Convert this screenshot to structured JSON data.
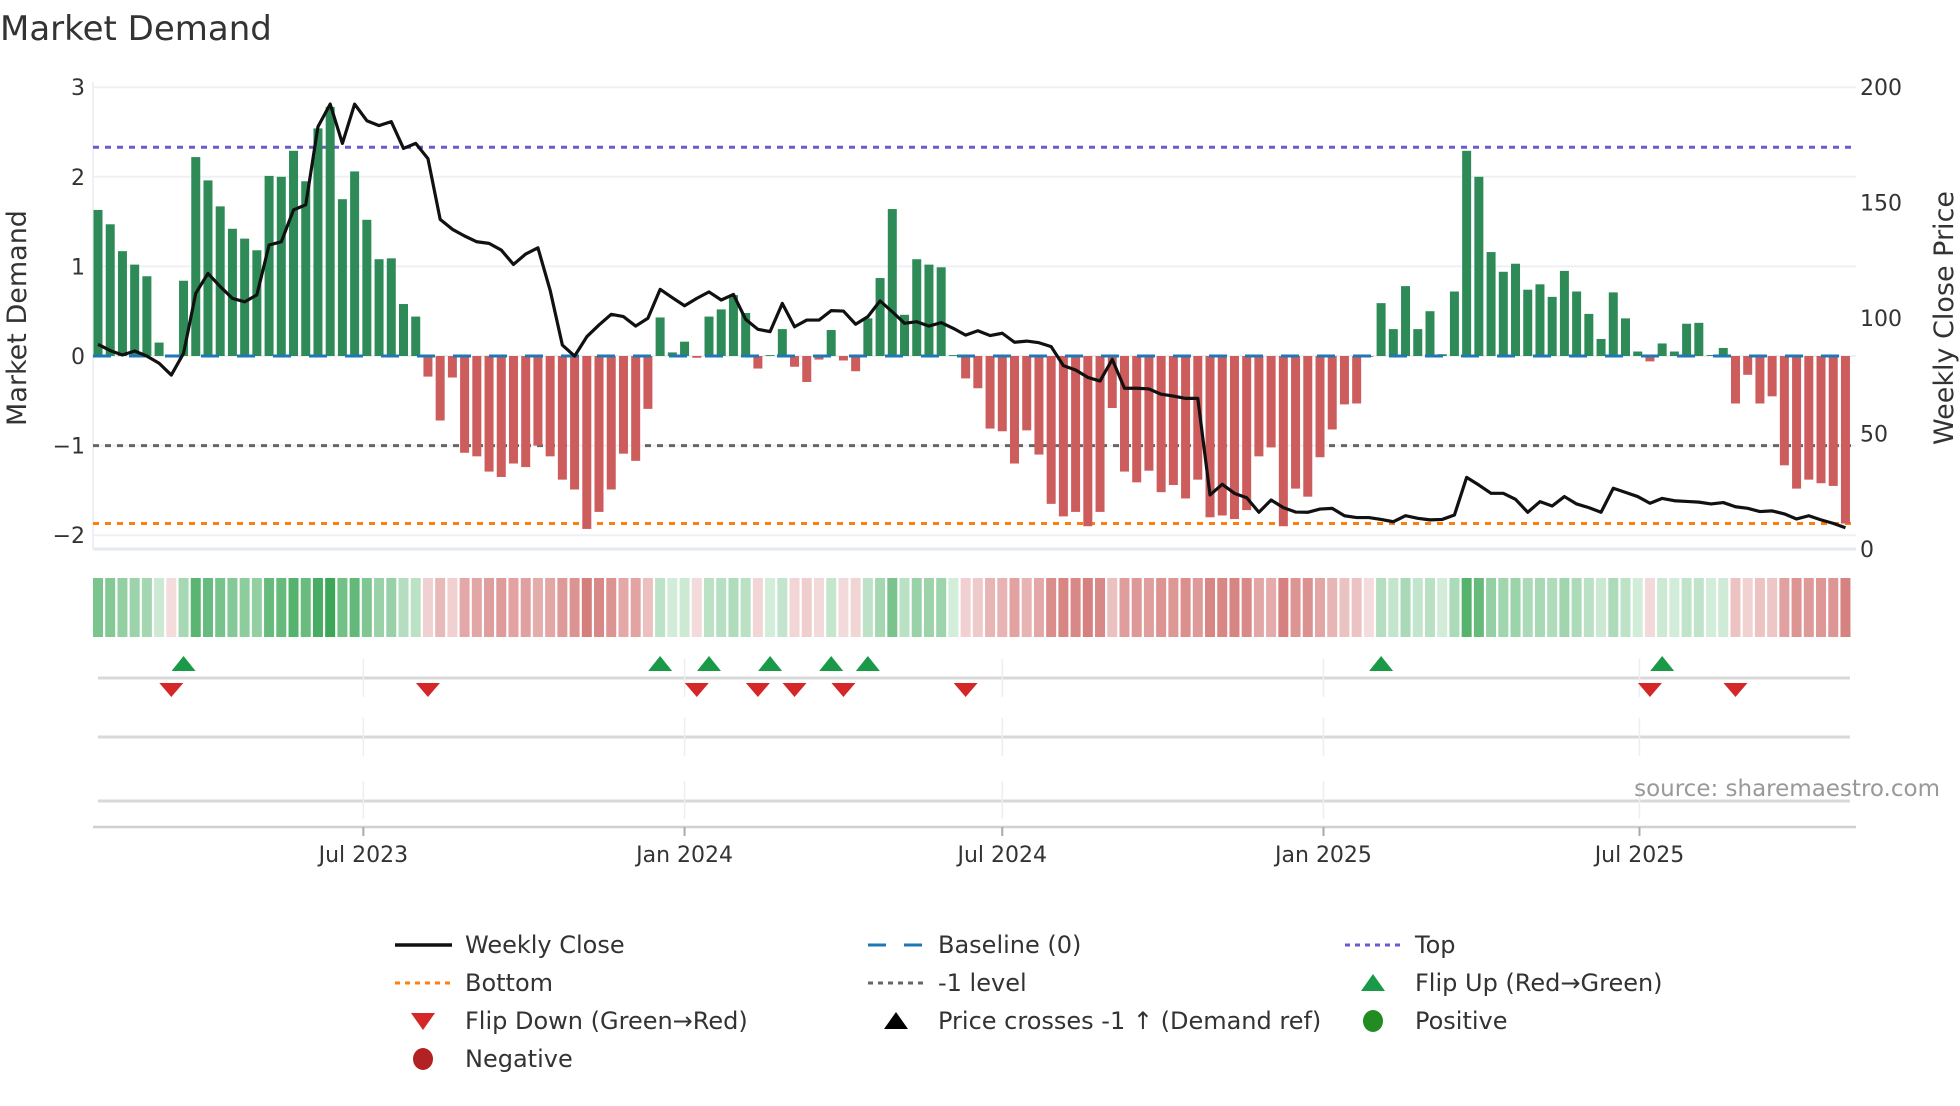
{
  "chart_data": {
    "type": "bar",
    "title": "Market Demand",
    "ylabel": "Market Demand",
    "y2label": "Weekly Close Price",
    "ylim": [
      -2.15,
      3
    ],
    "y2lim": [
      0,
      200
    ],
    "yticks": [
      3,
      2,
      1,
      0,
      -1,
      -2
    ],
    "ytick_labels": [
      "3",
      "2",
      "1",
      "0",
      "−1",
      "−2"
    ],
    "y2ticks": [
      200,
      150,
      100,
      50,
      0
    ],
    "y2tick_labels": [
      "200",
      "150",
      "100",
      "50",
      "0"
    ],
    "x_start": "2023-01-30",
    "x_frequency": "weekly",
    "xticks": [
      {
        "date": "2023-07-01",
        "label": "Jul 2023"
      },
      {
        "date": "2024-01-01",
        "label": "Jan 2024"
      },
      {
        "date": "2024-07-01",
        "label": "Jul 2024"
      },
      {
        "date": "2025-01-01",
        "label": "Jan 2025"
      },
      {
        "date": "2025-07-01",
        "label": "Jul 2025"
      }
    ],
    "reference_lines": {
      "top": 2.33,
      "bottom": -1.87,
      "minus_one": -1,
      "baseline": 0
    },
    "series": [
      {
        "name": "Market Demand",
        "axis": "left",
        "type": "bar",
        "values": [
          1.63,
          1.47,
          1.17,
          1.02,
          0.89,
          0.15,
          0,
          0.84,
          2.22,
          1.96,
          1.67,
          1.42,
          1.31,
          1.18,
          2.01,
          2.0,
          2.29,
          1.95,
          2.54,
          2.78,
          1.75,
          2.06,
          1.52,
          1.08,
          1.09,
          0.58,
          0.44,
          -0.23,
          -0.72,
          -0.24,
          -1.08,
          -1.12,
          -1.29,
          -1.35,
          -1.2,
          -1.24,
          -1.0,
          -1.12,
          -1.38,
          -1.49,
          -1.93,
          -1.74,
          -1.49,
          -1.09,
          -1.17,
          -0.59,
          0.43,
          0.04,
          0.16,
          -0.02,
          0.44,
          0.52,
          0.68,
          0.48,
          -0.14,
          0.01,
          0.3,
          -0.12,
          -0.29,
          -0.04,
          0.29,
          -0.05,
          -0.17,
          0.42,
          0.87,
          1.64,
          0.46,
          1.08,
          1.02,
          0.99,
          0.01,
          -0.25,
          -0.36,
          -0.81,
          -0.84,
          -1.2,
          -0.83,
          -1.1,
          -1.65,
          -1.79,
          -1.74,
          -1.9,
          -1.74,
          -0.58,
          -1.29,
          -1.41,
          -1.28,
          -1.52,
          -1.44,
          -1.59,
          -1.38,
          -1.8,
          -1.78,
          -1.82,
          -1.72,
          -1.12,
          -1.02,
          -1.9,
          -1.48,
          -1.57,
          -1.13,
          -0.82,
          -0.54,
          -0.53,
          -0.01,
          0.59,
          0.3,
          0.78,
          0.3,
          0.5,
          0.02,
          0.72,
          2.29,
          2.0,
          1.16,
          0.94,
          1.03,
          0.74,
          0.8,
          0.66,
          0.95,
          0.72,
          0.47,
          0.19,
          0.71,
          0.42,
          0.05,
          -0.06,
          0.14,
          0.05,
          0.36,
          0.37,
          0.01,
          0.09,
          -0.53,
          -0.21,
          -0.53,
          -0.45,
          -1.22,
          -1.48,
          -1.38,
          -1.42,
          -1.45,
          -1.87
        ]
      },
      {
        "name": "Weekly Close",
        "axis": "right",
        "type": "line",
        "values": [
          88.6,
          85.9,
          84,
          85.7,
          83.5,
          80.4,
          75.3,
          84.7,
          110.7,
          119.3,
          113.6,
          108.5,
          107,
          110,
          131.6,
          133,
          146.8,
          149,
          182.8,
          192.6,
          175.6,
          192.6,
          185.4,
          183.3,
          185,
          173.4,
          175.6,
          169,
          142.7,
          138.4,
          135.5,
          133,
          132.3,
          129.4,
          123.2,
          127.7,
          130.4,
          112,
          88.3,
          83.5,
          91.9,
          97,
          101.6,
          100.6,
          96.5,
          99.9,
          112.4,
          108.8,
          105.3,
          108.5,
          111.3,
          107.8,
          110.2,
          99.4,
          95.1,
          94.1,
          106.3,
          96.2,
          99.1,
          99.1,
          103.2,
          103,
          97.3,
          100.6,
          107.4,
          102.7,
          97.7,
          98.4,
          96.5,
          98,
          95.5,
          92.6,
          94.5,
          92.4,
          93.4,
          89.5,
          90,
          89.3,
          87.6,
          79.4,
          77.5,
          74.3,
          72.7,
          82.1,
          69.6,
          69.6,
          69.3,
          67,
          66.2,
          65.2,
          65.2,
          23.4,
          28,
          24.1,
          22.2,
          15.9,
          21.2,
          17.9,
          16,
          15.9,
          17.3,
          17.6,
          14.4,
          13.6,
          13.6,
          12.8,
          11.8,
          14.4,
          13.3,
          12.6,
          12.8,
          14.7,
          31,
          27.7,
          24.1,
          24.1,
          21.5,
          15.9,
          20.5,
          18.6,
          22.7,
          19.5,
          17.9,
          15.9,
          26.3,
          24.5,
          22.7,
          19.8,
          21.9,
          20.9,
          20.6,
          20.3,
          19.5,
          20.1,
          18.3,
          17.6,
          16.2,
          16.5,
          15.2,
          13,
          14.4,
          12.6,
          11.1,
          9.2
        ]
      }
    ],
    "legend_position": "bottom",
    "legend": [
      {
        "label": "Weekly Close",
        "symbol": "solid-line",
        "color": "#111111"
      },
      {
        "label": "Baseline (0)",
        "symbol": "dashed-line",
        "color": "#1f77b4"
      },
      {
        "label": "Top",
        "symbol": "dotted-line",
        "color": "#6a5acd"
      },
      {
        "label": "Bottom",
        "symbol": "dotted-line",
        "color": "#ff7f0e"
      },
      {
        "label": "-1 level",
        "symbol": "dotted-line",
        "color": "#666666"
      },
      {
        "label": "Flip Up (Red→Green)",
        "symbol": "triangle-up",
        "color": "#1a9a48"
      },
      {
        "label": "Flip Down (Green→Red)",
        "symbol": "triangle-down",
        "color": "#d62728"
      },
      {
        "label": "Price crosses -1 ↑ (Demand ref)",
        "symbol": "triangle-up",
        "color": "#000000"
      },
      {
        "label": "Positive",
        "symbol": "circle",
        "color": "#228b22"
      },
      {
        "label": "Negative",
        "symbol": "circle",
        "color": "#b22222"
      }
    ],
    "source": "source: sharemaestro.com"
  },
  "colors": {
    "positive_bar": "#2e8b57",
    "negative_bar": "#cd5c5c",
    "price_line": "#111111",
    "baseline": "#1f77b4",
    "top": "#6a5acd",
    "bottom": "#ff7f0e",
    "minus_one": "#666666",
    "flip_up": "#1a9a48",
    "flip_down": "#d62728",
    "grid": "#eef0f5"
  }
}
